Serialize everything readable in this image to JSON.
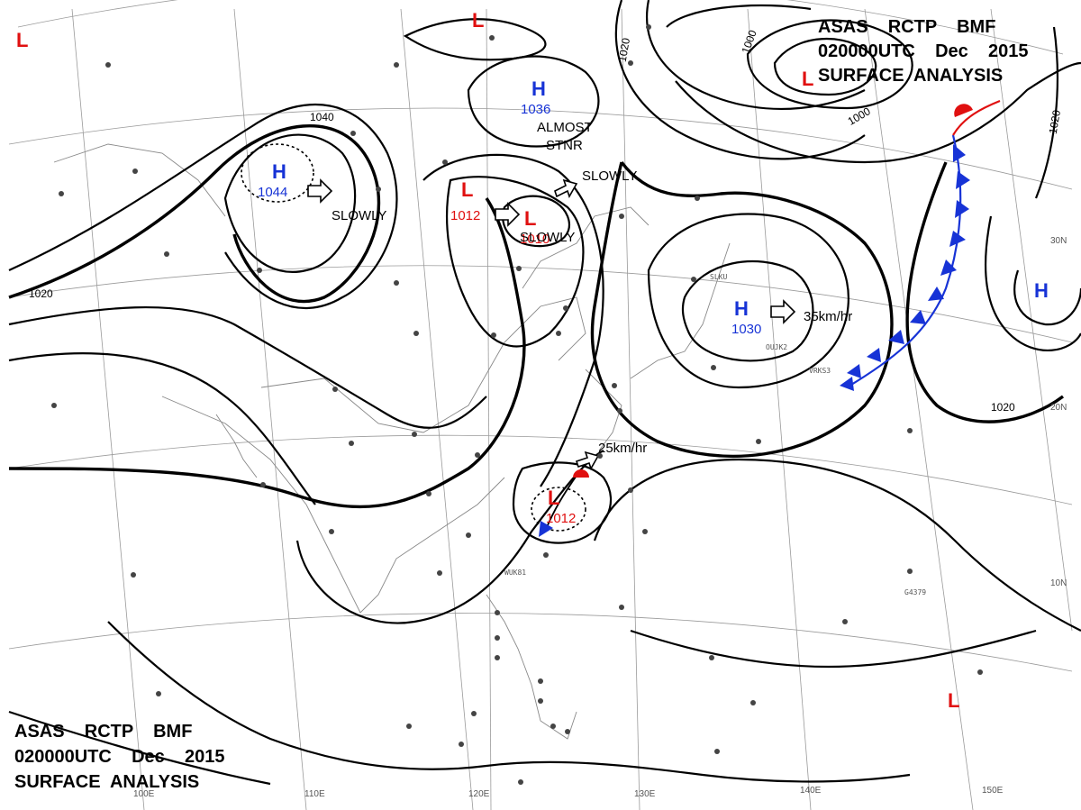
{
  "header_top": {
    "line1": "ASAS    RCTP    BMF",
    "line2": "020000UTC    Dec    2015",
    "line3": "SURFACE  ANALYSIS"
  },
  "header_bottom": {
    "line1": "ASAS    RCTP    BMF",
    "line2": "020000UTC    Dec    2015",
    "line3": "SURFACE  ANALYSIS"
  },
  "systems": [
    {
      "type": "H",
      "pressure": "1044"
    },
    {
      "type": "H",
      "pressure": "1036"
    },
    {
      "type": "H",
      "pressure": "1030"
    },
    {
      "type": "H",
      "pressure": ""
    },
    {
      "type": "L",
      "pressure": "1012"
    },
    {
      "type": "L",
      "pressure": "1010"
    },
    {
      "type": "L",
      "pressure": "1012"
    },
    {
      "type": "L",
      "pressure": ""
    },
    {
      "type": "L",
      "pressure": ""
    },
    {
      "type": "L",
      "pressure": ""
    },
    {
      "type": "L",
      "pressure": ""
    }
  ],
  "motion_labels": [
    "SLOWLY",
    "SLOWLY",
    "SLOWLY",
    "ALMOST",
    "STNR",
    "35km/hr",
    "25km/hr"
  ],
  "isobar_labels": [
    "1040",
    "1020",
    "1020",
    "1020",
    "1020",
    "1000",
    "1000"
  ],
  "latitude_labels": [
    "30N",
    "20N",
    "10N"
  ],
  "longitude_labels": [
    "100E",
    "110E",
    "120E",
    "130E",
    "140E",
    "150E"
  ],
  "station_ids": [
    "SLKU",
    "OUJK2",
    "VRKS3",
    "WUK81",
    "G4379"
  ],
  "colors": {
    "high": "#1733d6",
    "low": "#e01010",
    "isobar": "#000000",
    "grid": "#9a9a9a"
  }
}
